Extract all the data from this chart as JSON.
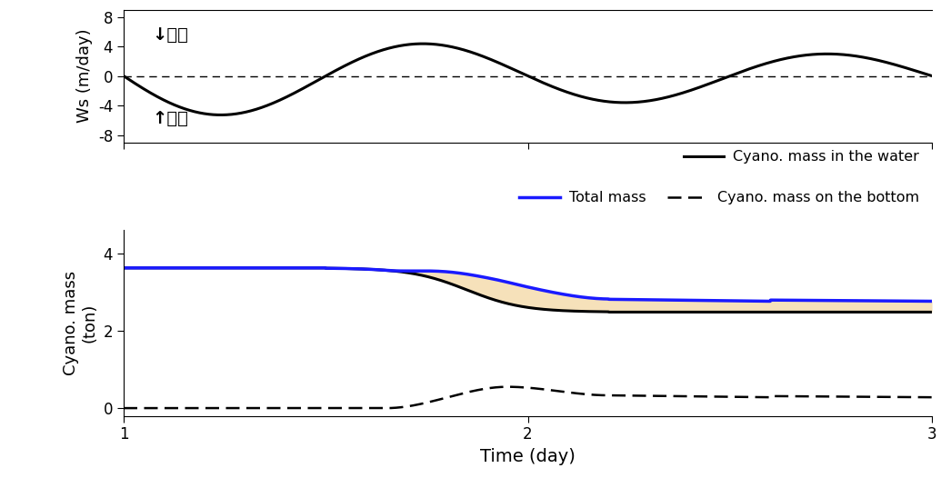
{
  "ws_ylabel": "Ws (m/day)",
  "ws_yticks": [
    -8,
    -4,
    0,
    4,
    8
  ],
  "ws_ylim": [
    -9,
    9
  ],
  "ws_annotation_up": "↑부상",
  "ws_annotation_down": "↓침강",
  "mass_ylabel": "Cyano. mass\n(ton)",
  "mass_yticks": [
    0,
    2,
    4
  ],
  "mass_ylim": [
    -0.2,
    4.6
  ],
  "xlabel": "Time (day)",
  "xlim": [
    1,
    3
  ],
  "xticks": [
    1,
    2,
    3
  ],
  "legend_water": "Cyano. mass in the water",
  "legend_total": "Total mass",
  "legend_bottom": "Cyano. mass on the bottom",
  "color_water": "#000000",
  "color_total_bg": "#f5deb3",
  "color_total": "#1a1aff",
  "color_bottom": "#000000",
  "figsize": [
    10.46,
    5.26
  ],
  "dpi": 100
}
